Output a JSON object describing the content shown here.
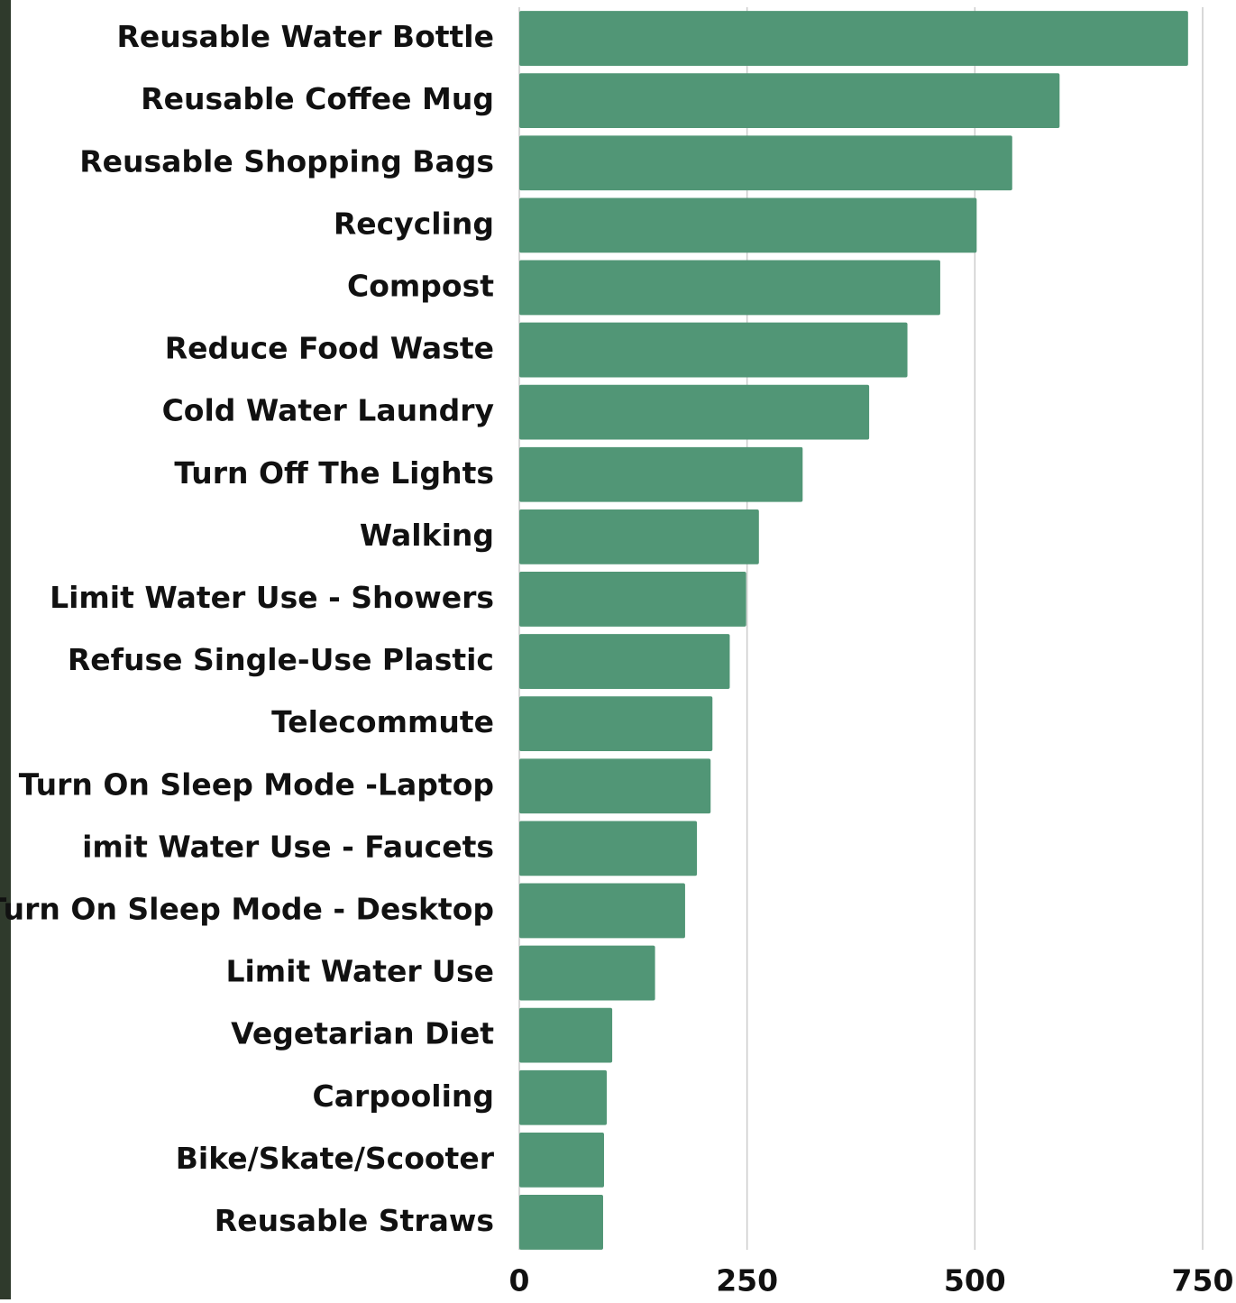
{
  "chart_data": {
    "type": "hbar",
    "categories": [
      "Reusable Water Bottle",
      "Reusable Coffee Mug",
      "Reusable Shopping Bags",
      "Recycling",
      "Compost",
      "Reduce Food Waste",
      "Cold Water Laundry",
      "Turn Off The Lights",
      "Walking",
      "Limit Water Use - Showers",
      "Refuse Single-Use Plastic",
      "Telecommute",
      "Turn On Sleep Mode -Laptop",
      "imit Water Use - Faucets",
      "Turn On Sleep Mode - Desktop",
      "Limit Water Use",
      "Vegetarian Diet",
      "Carpooling",
      "Bike/Skate/Scooter",
      "Reusable Straws"
    ],
    "values": [
      734,
      593,
      541,
      502,
      462,
      426,
      384,
      311,
      263,
      249,
      231,
      212,
      210,
      195,
      182,
      149,
      102,
      96,
      93,
      92
    ],
    "color": "#519676",
    "xlim": [
      0,
      750
    ],
    "xticks": [
      0,
      250,
      500,
      750
    ],
    "grid": true
  }
}
